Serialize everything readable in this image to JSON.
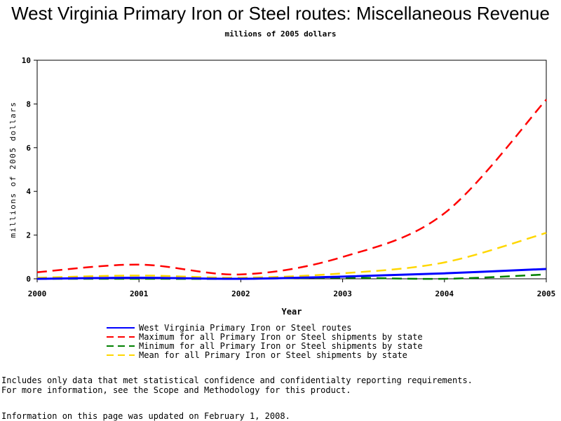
{
  "chart_data": {
    "type": "line",
    "title": "West Virginia Primary Iron or Steel routes: Miscellaneous Revenue",
    "subtitle": "millions of 2005 dollars",
    "xlabel": "Year",
    "ylabel": "millions of 2005 dollars",
    "x": [
      2000,
      2001,
      2002,
      2003,
      2004,
      2005
    ],
    "xlim": [
      2000,
      2005
    ],
    "ylim": [
      0,
      10
    ],
    "yticks": [
      0,
      2,
      4,
      6,
      8,
      10
    ],
    "grid": false,
    "legend_position": "bottom",
    "series": [
      {
        "name": "West Virginia Primary Iron or Steel routes",
        "color": "#0000ff",
        "style": "solid",
        "values": [
          0.0,
          0.05,
          0.0,
          0.1,
          0.25,
          0.45
        ]
      },
      {
        "name": "Maximum for all Primary Iron or Steel shipments by state",
        "color": "#ff0000",
        "style": "dashed",
        "values": [
          0.3,
          0.65,
          0.2,
          1.0,
          3.0,
          8.2
        ]
      },
      {
        "name": "Minimum for all Primary Iron or Steel shipments by state",
        "color": "#008000",
        "style": "dashed",
        "values": [
          0.0,
          0.0,
          0.0,
          0.05,
          0.0,
          0.2
        ]
      },
      {
        "name": "Mean for all Primary Iron or Steel shipments by state",
        "color": "#ffd700",
        "style": "dashed",
        "values": [
          0.05,
          0.15,
          0.05,
          0.25,
          0.75,
          2.1
        ]
      }
    ]
  },
  "notes": [
    "Includes only data that met statistical confidence and confidentialty reporting requirements.",
    "For more information, see the Scope and Methodology for this product."
  ],
  "updated": "Information on this page was updated on February 1, 2008."
}
